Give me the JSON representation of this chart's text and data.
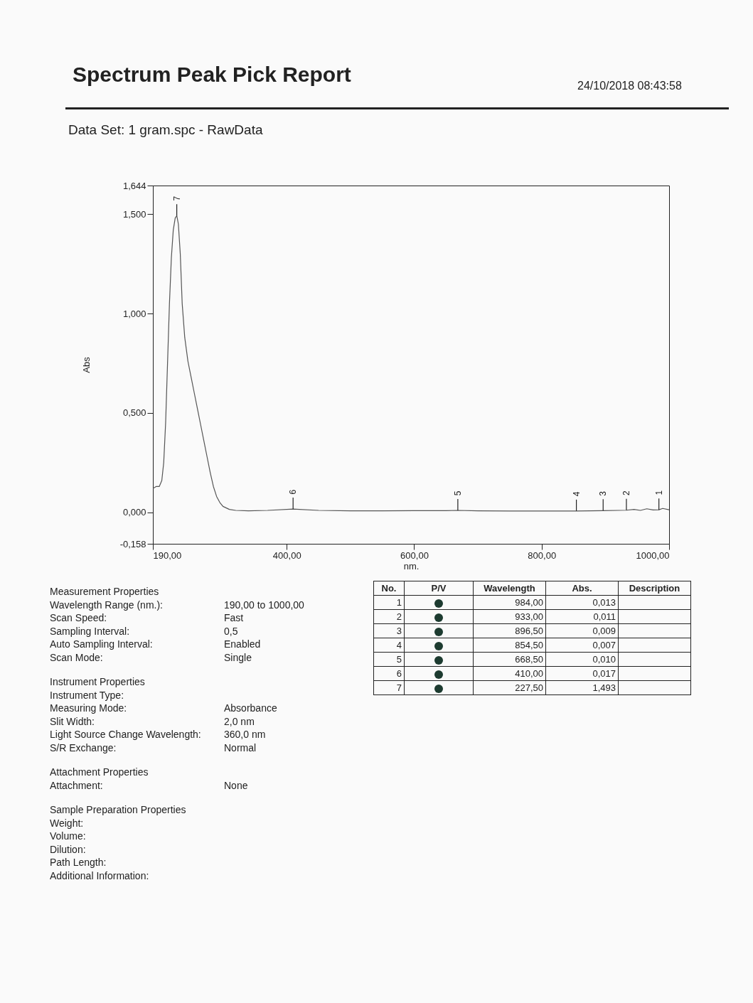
{
  "chart_data": {
    "type": "line",
    "title": "Spectrum Peak Pick Report",
    "subtitle": "Data Set: 1 gram.spc - RawData",
    "xlabel": "nm.",
    "ylabel": "Abs",
    "x": [
      190,
      195,
      200,
      204,
      207,
      210,
      213,
      216,
      219,
      222,
      225,
      227.5,
      230,
      233,
      236,
      240,
      245,
      250,
      255,
      260,
      265,
      270,
      275,
      280,
      285,
      290,
      295,
      300,
      310,
      320,
      340,
      370,
      410,
      450,
      500,
      550,
      600,
      650,
      668.5,
      700,
      750,
      800,
      854.5,
      896.5,
      920,
      933,
      945,
      955,
      965,
      975,
      984,
      990,
      1000
    ],
    "series": [
      {
        "color": "#555555",
        "values": [
          0.12,
          0.13,
          0.13,
          0.16,
          0.25,
          0.45,
          0.75,
          1.05,
          1.28,
          1.42,
          1.48,
          1.493,
          1.45,
          1.3,
          1.05,
          0.88,
          0.76,
          0.68,
          0.6,
          0.52,
          0.44,
          0.36,
          0.28,
          0.2,
          0.13,
          0.08,
          0.05,
          0.03,
          0.015,
          0.01,
          0.008,
          0.01,
          0.017,
          0.01,
          0.008,
          0.008,
          0.009,
          0.009,
          0.01,
          0.008,
          0.007,
          0.007,
          0.007,
          0.009,
          0.01,
          0.011,
          0.015,
          0.01,
          0.018,
          0.012,
          0.013,
          0.02,
          0.013
        ]
      }
    ],
    "xlim": [
      190,
      1000
    ],
    "xticks": [
      {
        "value": 190,
        "label": "190,00"
      },
      {
        "value": 400,
        "label": "400,00"
      },
      {
        "value": 600,
        "label": "600,00"
      },
      {
        "value": 800,
        "label": "800,00"
      },
      {
        "value": 1000,
        "label": "1000,00"
      }
    ],
    "ylim": [
      -0.158,
      1.644
    ],
    "yticks": [
      {
        "value": -0.158,
        "label": "-0,158"
      },
      {
        "value": 0,
        "label": "0,000"
      },
      {
        "value": 0.5,
        "label": "0,500"
      },
      {
        "value": 1,
        "label": "1,000"
      },
      {
        "value": 1.5,
        "label": "1,500"
      },
      {
        "value": 1.644,
        "label": "1,644"
      }
    ],
    "grid": false,
    "legend": false,
    "annotations": [
      "24/10/2018 08:43:58",
      "Measurement Properties",
      "Wavelength Range (nm.):",
      "190,00 to 1000,00",
      "Scan Speed:",
      "Fast",
      "Sampling Interval:",
      "0,5",
      "Auto Sampling Interval:",
      "Enabled",
      "Scan Mode:",
      "Single",
      "Instrument Properties",
      "Instrument Type:",
      "Measuring Mode:",
      "Absorbance",
      "Slit Width:",
      "2,0 nm",
      "Light Source Change Wavelength:",
      "360,0 nm",
      "S/R Exchange:",
      "Normal",
      "Attachment Properties",
      "Attachment:",
      "None",
      "Sample Preparation Properties",
      "Weight:",
      "Volume:",
      "Dilution:",
      "Path Length:",
      "Additional Information:",
      "No.",
      "P/V",
      "Wavelength",
      "Abs.",
      "Description",
      "1",
      "984,00",
      "0,013",
      "2",
      "933,00",
      "0,011",
      "3",
      "896,50",
      "0,009",
      "4",
      "854,50",
      "0,007",
      "5",
      "668,50",
      "0,010",
      "6",
      "410,00",
      "0,017",
      "7",
      "227,50",
      "1,493",
      {
        "text": "1",
        "x": 984,
        "y": 0.013
      },
      {
        "text": "2",
        "x": 933,
        "y": 0.011
      },
      {
        "text": "3",
        "x": 896.5,
        "y": 0.009
      },
      {
        "text": "4",
        "x": 854.5,
        "y": 0.007
      },
      {
        "text": "5",
        "x": 668.5,
        "y": 0.01
      },
      {
        "text": "6",
        "x": 410,
        "y": 0.017
      },
      {
        "text": "7",
        "x": 227.5,
        "y": 1.493
      }
    ]
  }
}
